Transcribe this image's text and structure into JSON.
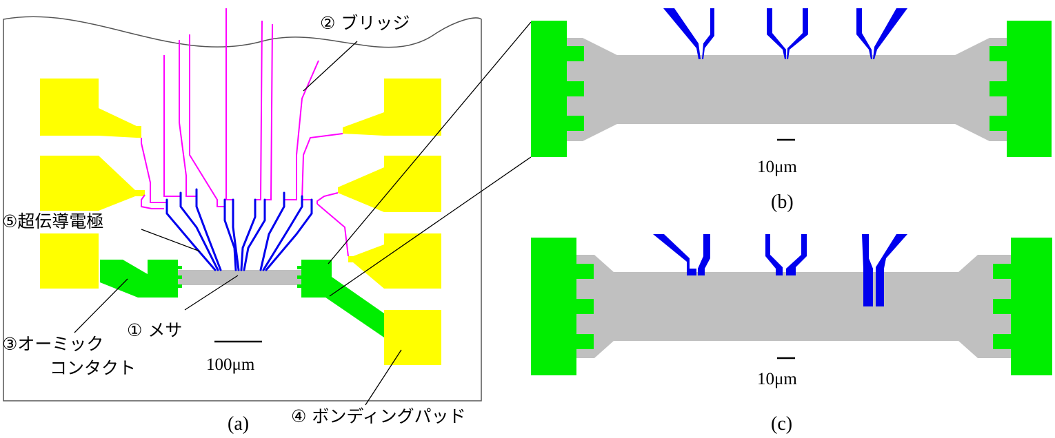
{
  "labels": {
    "bridge": "② ブリッジ",
    "electrode": "⑤超伝導電極",
    "ohmic_line1": "③オーミック",
    "ohmic_line2": "コンタクト",
    "mesa": "① メサ",
    "bonding_pad": "④ ボンディングパッド"
  },
  "scales": {
    "a": "100μm",
    "b": "10μm",
    "c": "10μm"
  },
  "captions": {
    "a": "(a)",
    "b": "(b)",
    "c": "(c)"
  },
  "colors": {
    "bonding_pad": "#ffff00",
    "ohmic_contact": "#00ee00",
    "mesa": "#c0c0c0",
    "electrode": "#0000ee",
    "bridge": "#ff00ff",
    "line": "#000000"
  }
}
